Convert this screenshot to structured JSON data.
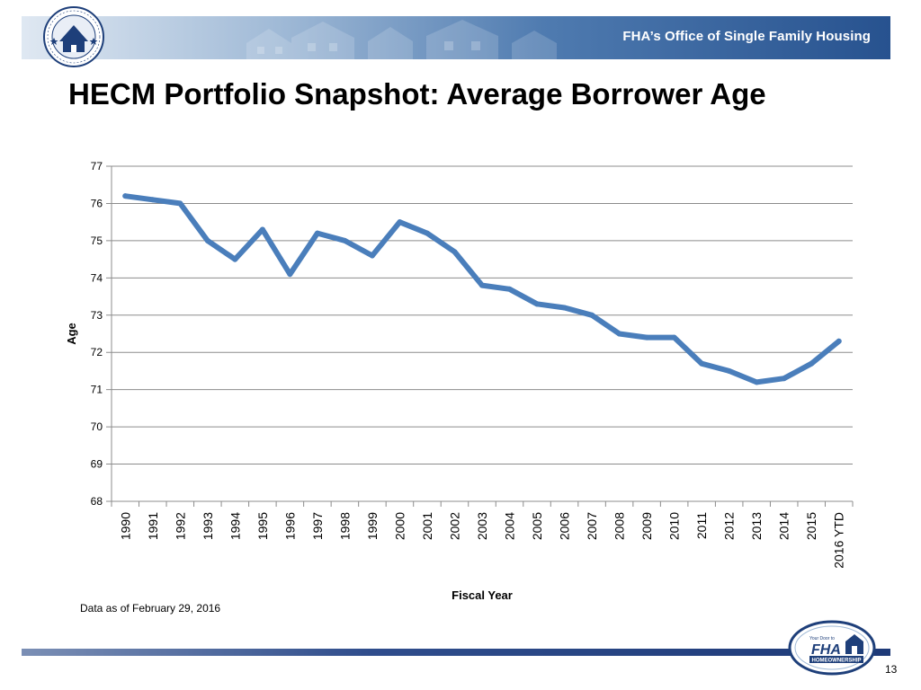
{
  "header": {
    "banner_text": "FHA’s Office of Single Family Housing",
    "seal_icon": "hud-seal-icon"
  },
  "page": {
    "title": "HECM Portfolio Snapshot: Average Borrower Age",
    "note": "Data as of February 29, 2016",
    "page_number": "13"
  },
  "footer": {
    "logo_icon": "fha-homeownership-logo-icon",
    "logo_small_text": "Your Door to",
    "logo_brand_text": "FHA",
    "logo_banner_text": "HOMEOWNERSHIP"
  },
  "colors": {
    "line": "#4a7ebb",
    "banner_dark": "#27528f",
    "gridline": "#8c8c8c"
  },
  "chart_data": {
    "type": "line",
    "title": "",
    "xlabel": "Fiscal Year",
    "ylabel": "Age",
    "ylim": [
      68,
      77
    ],
    "yticks": [
      68,
      69,
      70,
      71,
      72,
      73,
      74,
      75,
      76,
      77
    ],
    "grid": true,
    "legend": "none",
    "categories": [
      "1990",
      "1991",
      "1992",
      "1993",
      "1994",
      "1995",
      "1996",
      "1997",
      "1998",
      "1999",
      "2000",
      "2001",
      "2002",
      "2003",
      "2004",
      "2005",
      "2006",
      "2007",
      "2008",
      "2009",
      "2010",
      "2011",
      "2012",
      "2013",
      "2014",
      "2015",
      "2016 YTD"
    ],
    "series": [
      {
        "values": [
          76.2,
          76.1,
          76.0,
          75.0,
          74.5,
          75.3,
          74.1,
          75.2,
          75.0,
          74.6,
          75.5,
          75.2,
          74.7,
          73.8,
          73.7,
          73.3,
          73.2,
          73.0,
          72.5,
          72.4,
          72.4,
          71.7,
          71.5,
          71.2,
          71.3,
          71.7,
          72.3
        ]
      }
    ]
  }
}
